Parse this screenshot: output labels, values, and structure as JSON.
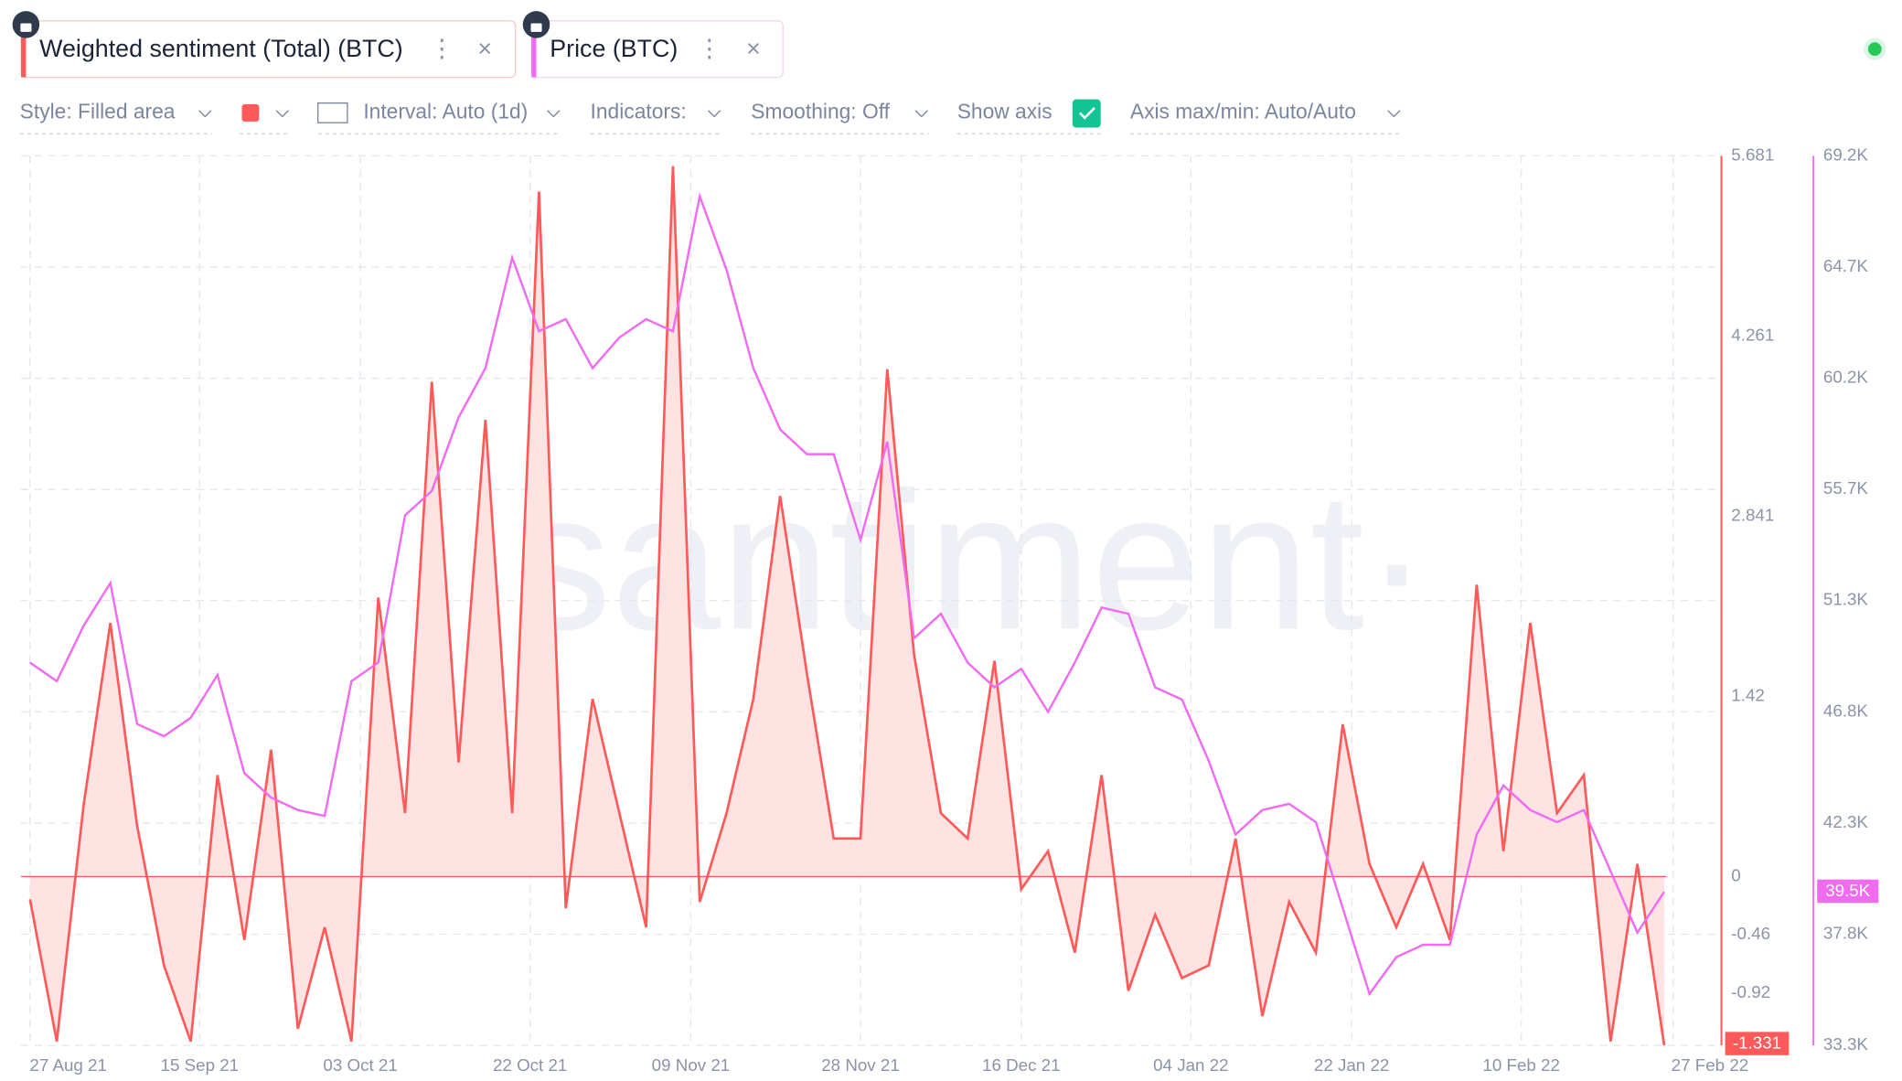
{
  "toolbar": {
    "style": "Style: Filled area",
    "interval": "Interval: Auto (1d)",
    "indicators": "Indicators:",
    "smoothing": "Smoothing: Off",
    "show_axis": "Show axis",
    "axis": "Axis max/min: Auto/Auto"
  },
  "watermark": "·santiment·",
  "chart_data": {
    "type": "combo",
    "x": [
      "27 Aug 21",
      "30 Aug 21",
      "02 Sep 21",
      "05 Sep 21",
      "08 Sep 21",
      "11 Sep 21",
      "14 Sep 21",
      "17 Sep 21",
      "20 Sep 21",
      "23 Sep 21",
      "26 Sep 21",
      "29 Sep 21",
      "02 Oct 21",
      "05 Oct 21",
      "08 Oct 21",
      "11 Oct 21",
      "14 Oct 21",
      "17 Oct 21",
      "20 Oct 21",
      "23 Oct 21",
      "26 Oct 21",
      "29 Oct 21",
      "01 Nov 21",
      "04 Nov 21",
      "07 Nov 21",
      "10 Nov 21",
      "13 Nov 21",
      "16 Nov 21",
      "19 Nov 21",
      "22 Nov 21",
      "25 Nov 21",
      "28 Nov 21",
      "01 Dec 21",
      "04 Dec 21",
      "07 Dec 21",
      "10 Dec 21",
      "13 Dec 21",
      "16 Dec 21",
      "19 Dec 21",
      "22 Dec 21",
      "25 Dec 21",
      "28 Dec 21",
      "31 Dec 21",
      "03 Jan 22",
      "06 Jan 22",
      "09 Jan 22",
      "12 Jan 22",
      "15 Jan 22",
      "18 Jan 22",
      "21 Jan 22",
      "24 Jan 22",
      "27 Jan 22",
      "30 Jan 22",
      "02 Feb 22",
      "05 Feb 22",
      "08 Feb 22",
      "11 Feb 22",
      "14 Feb 22",
      "17 Feb 22",
      "20 Feb 22",
      "23 Feb 22",
      "26 Feb 22"
    ],
    "xlim": [
      "26 Aug 21",
      "04 Mar 22"
    ],
    "xticks": [
      "27 Aug 21",
      "15 Sep 21",
      "03 Oct 21",
      "22 Oct 21",
      "09 Nov 21",
      "28 Nov 21",
      "16 Dec 21",
      "04 Jan 22",
      "22 Jan 22",
      "10 Feb 22",
      "27 Feb 22"
    ],
    "ylim": [
      -1.331,
      5.681
    ],
    "yticks": [
      -0.92,
      -0.46,
      0,
      1.42,
      2.841,
      4.261,
      5.681
    ],
    "y2lim": [
      33300,
      69200
    ],
    "y2ticks": [
      {
        "value": 33300,
        "label": "33.3K"
      },
      {
        "value": 37787.5,
        "label": "37.8K"
      },
      {
        "value": 42275,
        "label": "42.3K"
      },
      {
        "value": 46762.5,
        "label": "46.8K"
      },
      {
        "value": 51250,
        "label": "51.3K"
      },
      {
        "value": 55737.5,
        "label": "55.7K"
      },
      {
        "value": 60225,
        "label": "60.2K"
      },
      {
        "value": 64712.5,
        "label": "64.7K"
      },
      {
        "value": 69200,
        "label": "69.2K"
      }
    ],
    "grid": true,
    "series": [
      {
        "name": "Weighted sentiment (Total) (BTC)",
        "type": "area",
        "axis": "y",
        "color": "#ff5a5a",
        "fill": "#ffe3e3",
        "values": [
          -0.18,
          -1.3,
          0.56,
          2.0,
          0.4,
          -0.7,
          -1.3,
          0.8,
          -0.5,
          1.0,
          -1.2,
          -0.4,
          -1.3,
          2.2,
          0.5,
          3.9,
          0.9,
          3.6,
          0.5,
          5.4,
          -0.25,
          1.4,
          0.5,
          -0.4,
          5.6,
          -0.2,
          0.5,
          1.4,
          3.0,
          1.6,
          0.3,
          0.3,
          4.0,
          1.75,
          0.5,
          0.3,
          1.7,
          -0.1,
          0.2,
          -0.6,
          0.8,
          -0.9,
          -0.3,
          -0.8,
          -0.7,
          0.3,
          -1.1,
          -0.2,
          -0.6,
          1.2,
          0.1,
          -0.4,
          0.1,
          -0.5,
          2.3,
          0.2,
          2.0,
          0.5,
          0.8,
          -1.3,
          0.1,
          -1.331
        ]
      },
      {
        "name": "Price (BTC)",
        "type": "line",
        "axis": "y2",
        "color": "#f06bf0",
        "values": [
          48750,
          48000,
          50230,
          51960,
          46270,
          45780,
          46520,
          48250,
          44290,
          43300,
          42800,
          42560,
          48000,
          48750,
          54690,
          55680,
          58650,
          60630,
          65090,
          62120,
          62610,
          60630,
          61870,
          62610,
          62120,
          67570,
          64600,
          60630,
          58160,
          57160,
          57160,
          53700,
          57660,
          49730,
          50720,
          48750,
          47750,
          48500,
          46760,
          48750,
          50970,
          50720,
          47750,
          47260,
          44780,
          41810,
          42800,
          43050,
          42310,
          38850,
          35380,
          36860,
          37360,
          37360,
          41810,
          43790,
          42800,
          42310,
          42800,
          40330,
          37850,
          39500
        ],
        "value_labels": [
          null,
          null,
          null,
          null,
          null,
          null,
          null,
          null,
          null,
          null,
          null,
          null,
          null,
          null,
          null,
          null,
          null,
          null,
          null,
          null,
          null,
          null,
          null,
          null,
          null,
          null,
          null,
          null,
          null,
          null,
          null,
          null,
          null,
          null,
          null,
          null,
          null,
          null,
          null,
          null,
          null,
          null,
          null,
          null,
          null,
          null,
          null,
          null,
          null,
          null,
          null,
          null,
          null,
          null,
          null,
          null,
          null,
          null,
          null,
          null,
          null,
          "39.5K"
        ]
      }
    ]
  }
}
